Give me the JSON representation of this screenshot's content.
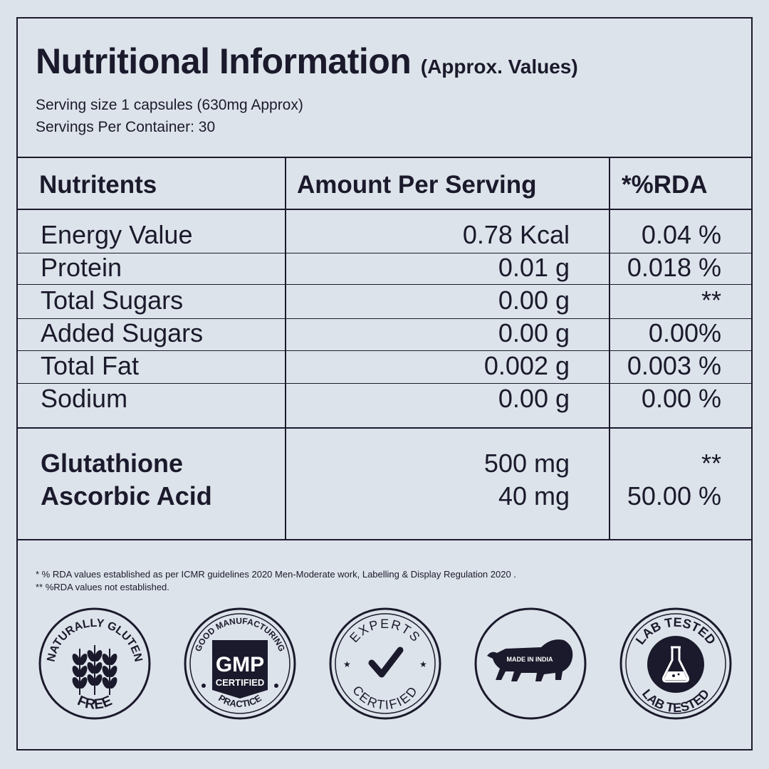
{
  "header": {
    "title": "Nutritional Information",
    "title_suffix": "(Approx. Values)",
    "serving_size": "Serving size 1 capsules (630mg Approx)",
    "servings_per_container": "Servings Per Container: 30"
  },
  "table": {
    "columns": [
      "Nutritents",
      "Amount Per Serving",
      "*%RDA"
    ],
    "rows": [
      {
        "name": "Energy Value",
        "amount": "0.78 Kcal",
        "rda": "0.04 %"
      },
      {
        "name": "Protein",
        "amount": "0.01 g",
        "rda": "0.018 %"
      },
      {
        "name": "Total Sugars",
        "amount": "0.00 g",
        "rda": "**"
      },
      {
        "name": "Added Sugars",
        "amount": "0.00 g",
        "rda": "0.00%"
      },
      {
        "name": "Total Fat",
        "amount": "0.002 g",
        "rda": "0.003 %"
      },
      {
        "name": "Sodium",
        "amount": "0.00 g",
        "rda": "0.00 %"
      }
    ],
    "actives": [
      {
        "name": "Glutathione",
        "amount": "500 mg",
        "rda": "**"
      },
      {
        "name": "Ascorbic Acid",
        "amount": "40 mg",
        "rda": "50.00 %"
      }
    ]
  },
  "footnotes": [
    "* % RDA values established as per ICMR guidelines 2020 Men-Moderate work, Labelling & Display Regulation 2020 .",
    "** %RDA values not established."
  ],
  "badges": [
    {
      "icon": "wheat-icon",
      "top_text": "NATURALLY GLUTEN",
      "bottom_text": "FREE"
    },
    {
      "icon": "gmp-icon",
      "top_text": "GOOD MANUFACTURING",
      "center_text_1": "GMP",
      "center_text_2": "CERTIFIED",
      "bottom_text": "PRACTICE"
    },
    {
      "icon": "checkmark-icon",
      "top_text": "EXPERTS",
      "bottom_text": "CERTIFIED"
    },
    {
      "icon": "lion-icon",
      "center_text": "MADE IN INDIA"
    },
    {
      "icon": "flask-icon",
      "top_text": "LAB TESTED",
      "bottom_text": "LAB TESTED"
    }
  ]
}
